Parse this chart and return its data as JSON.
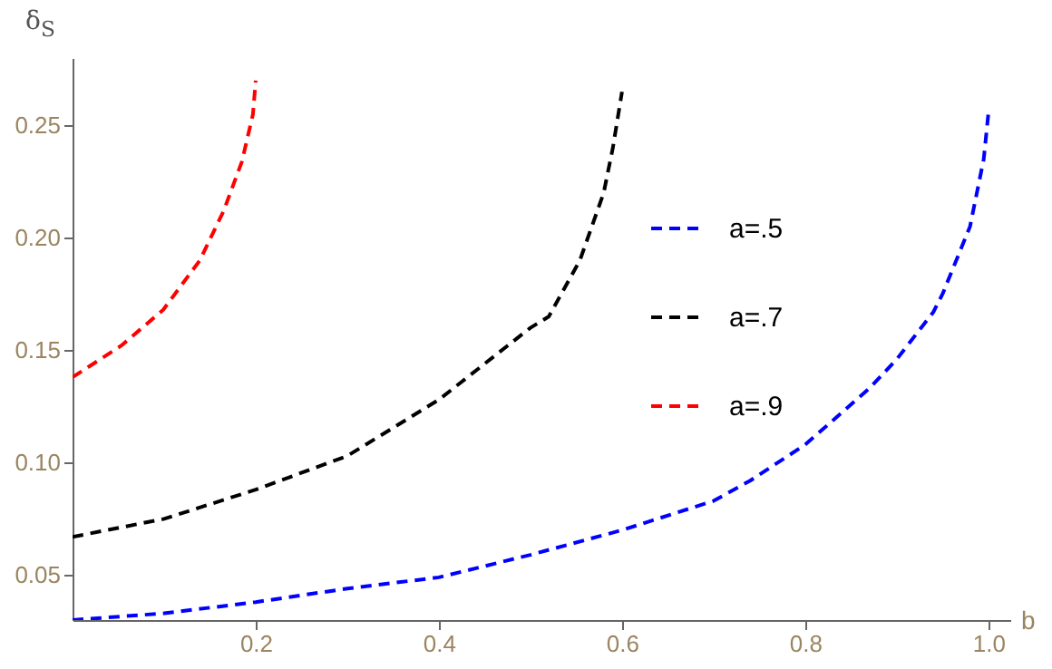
{
  "chart_data": {
    "type": "line",
    "xlabel": "b",
    "ylabel": "δ$_{S}$",
    "xlim": [
      0,
      1.024
    ],
    "ylim": [
      0.03,
      0.28
    ],
    "xticks": [
      0.2,
      0.4,
      0.6,
      0.8,
      {
        "value": 1,
        "label": "1.0"
      }
    ],
    "yticks": [
      0.05,
      {
        "value": 0.1,
        "label": "0.10"
      },
      0.15,
      {
        "value": 0.2,
        "label": "0.20"
      },
      0.25
    ],
    "grid": false,
    "legend": "top right",
    "line_style": "dashed",
    "marker": "none",
    "series": [
      {
        "name": "a=.5",
        "color": "#0000ff",
        "x": [
          0,
          0.1,
          0.2,
          0.3,
          0.4,
          0.5,
          0.6,
          0.7,
          0.74,
          0.8,
          0.87,
          0.9,
          0.94,
          0.95,
          0.98,
          0.995,
          1.0
        ],
        "values": [
          0.03,
          0.033,
          0.038,
          0.044,
          0.049,
          0.059,
          0.07,
          0.083,
          0.092,
          0.108,
          0.133,
          0.146,
          0.167,
          0.175,
          0.205,
          0.235,
          0.255
        ]
      },
      {
        "name": "a=.7",
        "color": "#000000",
        "x": [
          0,
          0.1,
          0.2,
          0.3,
          0.4,
          0.5,
          0.52,
          0.554,
          0.58,
          0.59,
          0.6
        ],
        "values": [
          0.067,
          0.075,
          0.088,
          0.103,
          0.128,
          0.16,
          0.165,
          0.19,
          0.22,
          0.24,
          0.265
        ]
      },
      {
        "name": "a=.9",
        "color": "#ff0000",
        "x": [
          0,
          0.053,
          0.099,
          0.139,
          0.165,
          0.185,
          0.197,
          0.2
        ],
        "values": [
          0.138,
          0.152,
          0.168,
          0.19,
          0.212,
          0.234,
          0.255,
          0.27
        ]
      }
    ]
  }
}
